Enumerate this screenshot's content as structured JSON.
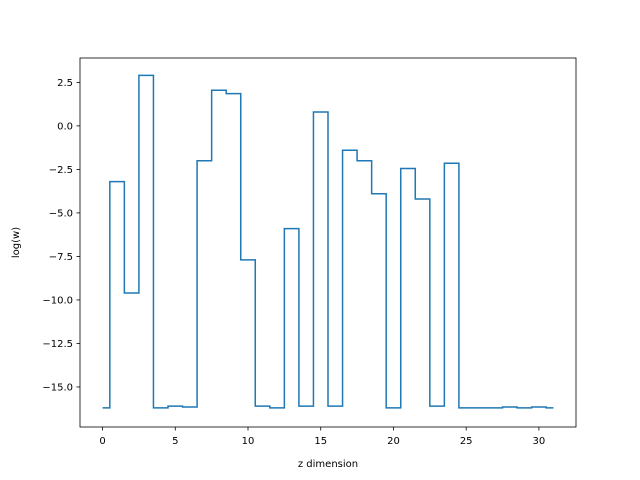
{
  "chart_data": {
    "type": "line",
    "drawstyle": "steps-mid",
    "title": "",
    "xlabel": "z dimension",
    "ylabel": "log(w)",
    "xlim": [
      -1.55,
      32.55
    ],
    "ylim": [
      -17.3,
      3.9
    ],
    "xticks": [
      0,
      5,
      10,
      15,
      20,
      25,
      30
    ],
    "yticks": [
      2.5,
      0.0,
      -2.5,
      -5.0,
      -7.5,
      -10.0,
      -12.5,
      -15.0
    ],
    "ytick_labels": [
      "2.5",
      "0.0",
      "−2.5",
      "−5.0",
      "−7.5",
      "−10.0",
      "−12.5",
      "−15.0"
    ],
    "grid": false,
    "legend": "none",
    "series": [
      {
        "color": "#1f77b4",
        "x": [
          0,
          1,
          2,
          3,
          4,
          5,
          6,
          7,
          8,
          9,
          10,
          11,
          12,
          13,
          14,
          15,
          16,
          17,
          18,
          19,
          20,
          21,
          22,
          23,
          24,
          25,
          26,
          27,
          28,
          29,
          30,
          31
        ],
        "y": [
          -16.2,
          -3.2,
          -9.6,
          2.9,
          -16.2,
          -16.1,
          -16.15,
          -2.0,
          2.05,
          1.85,
          -7.7,
          -16.1,
          -16.2,
          -5.9,
          -16.1,
          0.8,
          -16.1,
          -1.4,
          -2.0,
          -3.9,
          -16.2,
          -2.45,
          -4.2,
          -16.1,
          -2.15,
          -16.2,
          -16.2,
          -16.2,
          -16.15,
          -16.2,
          -16.15,
          -16.2
        ]
      }
    ]
  }
}
